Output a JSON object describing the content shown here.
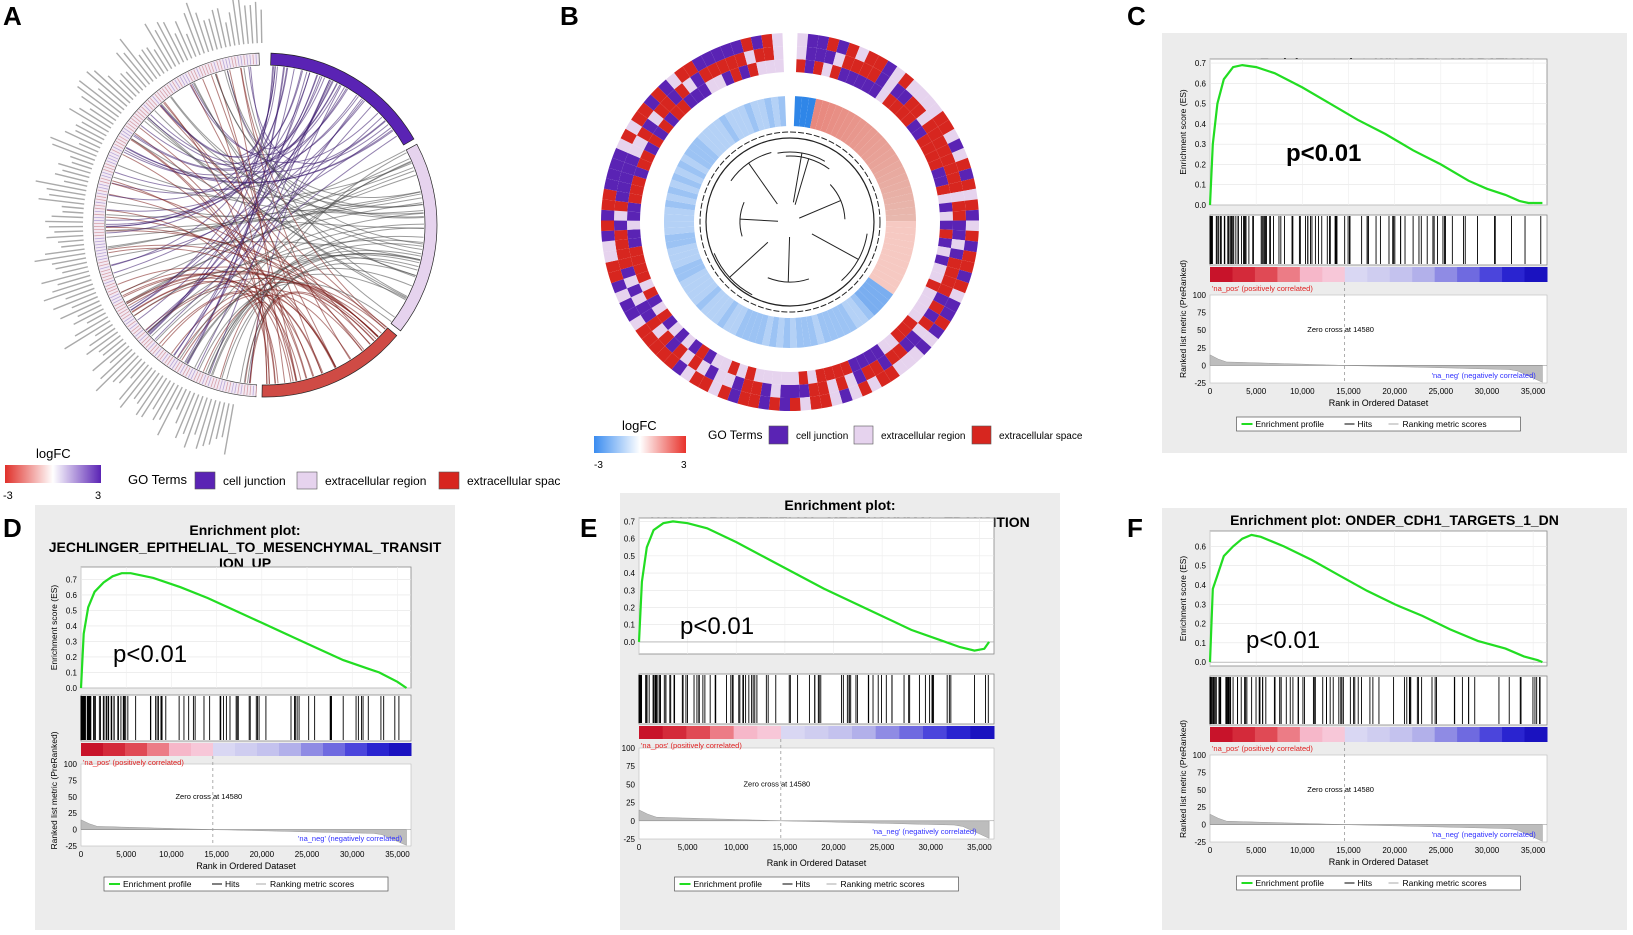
{
  "panel_labels": {
    "A": "A",
    "B": "B",
    "C": "C",
    "D": "D",
    "E": "E",
    "F": "F"
  },
  "colors": {
    "junction": "#5a23b4",
    "region": "#e6d3ee",
    "space": "#d7261f",
    "profile": "#22dd22",
    "neg_blue": "#3030ff",
    "pos_red": "#e02020"
  },
  "panel_a": {
    "legend": {
      "logfc_title": "logFC",
      "logfc_min": "-3",
      "logfc_max": "3",
      "go_title": "GO Terms"
    },
    "terms": [
      "cell junction",
      "extracellular region",
      "extracellular space"
    ]
  },
  "panel_b": {
    "legend": {
      "logfc_title": "logFC",
      "logfc_min": "-3",
      "logfc_max": "3",
      "go_title": "GO Terms"
    },
    "terms": [
      "cell junction",
      "extracellular region",
      "extracellular space"
    ]
  },
  "gsea_common": {
    "ylabel_es": "Enrichment score (ES)",
    "ylabel_metric": "Ranked list metric (PreRanked)",
    "xlabel": "Rank in Ordered Dataset",
    "pos_label": "'na_pos' (positively correlated)",
    "neg_label": "'na_neg' (negatively correlated)",
    "zero_cross": "Zero cross at 14580",
    "legend_profile": "Enrichment profile",
    "legend_hits": "Hits",
    "legend_metric": "Ranking metric scores",
    "xticks": [
      0,
      5000,
      10000,
      15000,
      20000,
      25000,
      30000,
      35000
    ],
    "xtick_labels": [
      "0",
      "5,000",
      "10,000",
      "15,000",
      "20,000",
      "25,000",
      "30,000",
      "35,000"
    ],
    "metric_ticks": [
      100,
      75,
      50,
      25,
      0,
      -25
    ],
    "metric_tick_labels": [
      "100",
      "75",
      "50",
      "25",
      "0",
      "-25"
    ],
    "xlim": [
      0,
      36500
    ]
  },
  "chart_data": [
    {
      "panel": "C",
      "type": "line",
      "title_lines": [
        "Enrichment plot: WU_CELL_MIGRATION"
      ],
      "pvalue": "p<0.01",
      "ylim": [
        0,
        0.72
      ],
      "yticks": [
        0.0,
        0.1,
        0.2,
        0.3,
        0.4,
        0.5,
        0.6,
        0.7
      ],
      "ytick_labels": [
        "0.0",
        "0.1",
        "0.2",
        "0.3",
        "0.4",
        "0.5",
        "0.6",
        "0.7"
      ],
      "x": [
        0,
        300,
        800,
        1500,
        2500,
        3500,
        5000,
        7000,
        10000,
        13000,
        16000,
        19000,
        22000,
        25000,
        28000,
        30000,
        32000,
        33500,
        34500,
        35500,
        36000
      ],
      "y": [
        0.0,
        0.3,
        0.5,
        0.62,
        0.68,
        0.69,
        0.68,
        0.65,
        0.58,
        0.5,
        0.42,
        0.35,
        0.27,
        0.2,
        0.12,
        0.08,
        0.05,
        0.02,
        0.01,
        0.01,
        0.01
      ]
    },
    {
      "panel": "D",
      "type": "line",
      "title_lines": [
        "Enrichment plot:",
        "JECHLINGER_EPITHELIAL_TO_MESENCHYMAL_TRANSIT",
        "ION_UP"
      ],
      "pvalue": "p<0.01",
      "ylim": [
        0,
        0.78
      ],
      "yticks": [
        0.0,
        0.1,
        0.2,
        0.3,
        0.4,
        0.5,
        0.6,
        0.7
      ],
      "ytick_labels": [
        "0.0",
        "0.1",
        "0.2",
        "0.3",
        "0.4",
        "0.5",
        "0.6",
        "0.7"
      ],
      "x": [
        0,
        300,
        800,
        1500,
        2500,
        3500,
        4500,
        5500,
        8000,
        11000,
        14000,
        17000,
        20000,
        23000,
        26000,
        29000,
        32000,
        33000,
        35000,
        36000
      ],
      "y": [
        0.0,
        0.35,
        0.52,
        0.62,
        0.68,
        0.72,
        0.74,
        0.74,
        0.71,
        0.65,
        0.58,
        0.5,
        0.42,
        0.34,
        0.26,
        0.18,
        0.12,
        0.1,
        0.04,
        0.0
      ]
    },
    {
      "panel": "E",
      "type": "line",
      "title_lines": [
        "Enrichment plot:",
        "HALLMARK_EPITHELIAL_MESENCHYMAL_TRANSITION"
      ],
      "pvalue": "p<0.01",
      "ylim": [
        -0.07,
        0.72
      ],
      "yticks": [
        0.0,
        0.1,
        0.2,
        0.3,
        0.4,
        0.5,
        0.6,
        0.7
      ],
      "ytick_labels": [
        "0.0",
        "0.1",
        "0.2",
        "0.3",
        "0.4",
        "0.5",
        "0.6",
        "0.7"
      ],
      "x": [
        0,
        300,
        800,
        1500,
        2500,
        3500,
        5000,
        7000,
        10000,
        13000,
        16000,
        19000,
        22000,
        25000,
        28000,
        31000,
        33000,
        34500,
        35500,
        36000
      ],
      "y": [
        0.0,
        0.35,
        0.55,
        0.65,
        0.69,
        0.7,
        0.69,
        0.66,
        0.58,
        0.49,
        0.4,
        0.31,
        0.23,
        0.15,
        0.07,
        0.01,
        -0.03,
        -0.05,
        -0.04,
        0.0
      ]
    },
    {
      "panel": "F",
      "type": "line",
      "title_lines": [
        "Enrichment plot: ONDER_CDH1_TARGETS_1_DN"
      ],
      "pvalue": "p<0.01",
      "ylim": [
        -0.02,
        0.68
      ],
      "yticks": [
        0.0,
        0.1,
        0.2,
        0.3,
        0.4,
        0.5,
        0.6
      ],
      "ytick_labels": [
        "0.0",
        "0.1",
        "0.2",
        "0.3",
        "0.4",
        "0.5",
        "0.6"
      ],
      "x": [
        0,
        300,
        800,
        1500,
        2500,
        3500,
        4500,
        5500,
        8000,
        11000,
        14000,
        17000,
        20000,
        23000,
        26000,
        29000,
        32000,
        34000,
        35500,
        36000
      ],
      "y": [
        0.0,
        0.38,
        0.45,
        0.55,
        0.6,
        0.64,
        0.66,
        0.65,
        0.6,
        0.53,
        0.45,
        0.37,
        0.3,
        0.24,
        0.17,
        0.11,
        0.07,
        0.03,
        0.01,
        0.0
      ]
    }
  ]
}
